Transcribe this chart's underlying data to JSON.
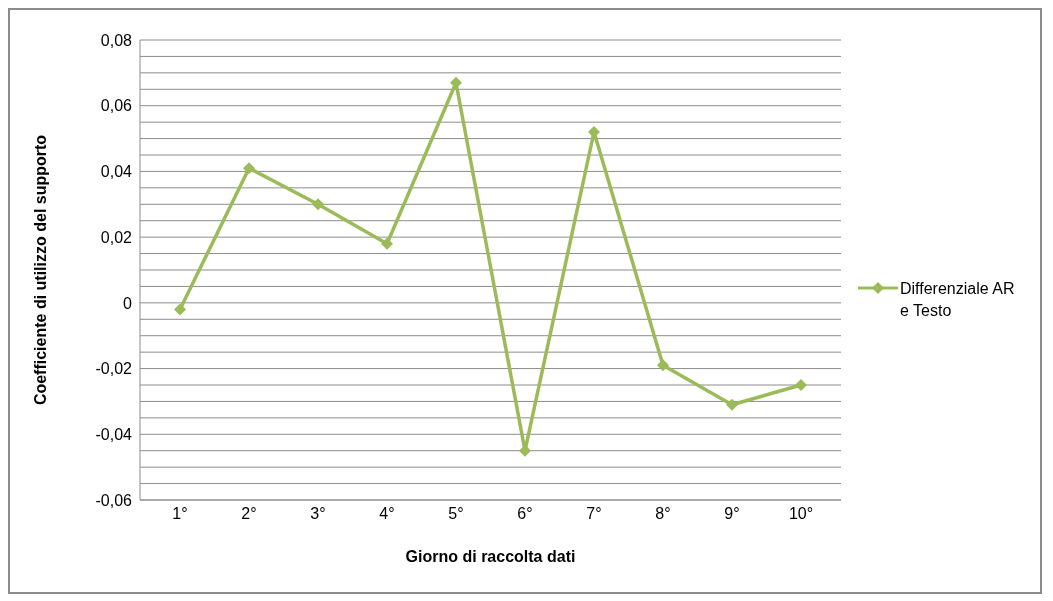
{
  "chart_data": {
    "type": "line",
    "xlabel": "Giorno di raccolta dati",
    "ylabel": "Coefficiente di utilizzo del supporto",
    "categories": [
      "1°",
      "2°",
      "3°",
      "4°",
      "5°",
      "6°",
      "7°",
      "8°",
      "9°",
      "10°"
    ],
    "series": [
      {
        "name": "Differenziale AR e Testo",
        "color": "#9bbb59",
        "values": [
          -0.002,
          0.041,
          0.03,
          0.018,
          0.067,
          -0.045,
          0.052,
          -0.019,
          -0.031,
          -0.025
        ]
      }
    ],
    "ylim": [
      -0.06,
      0.08
    ],
    "yticks": [
      {
        "value": -0.06,
        "label": "-0,06"
      },
      {
        "value": -0.055,
        "label": null
      },
      {
        "value": -0.05,
        "label": null
      },
      {
        "value": -0.045,
        "label": null
      },
      {
        "value": -0.04,
        "label": "-0,04"
      },
      {
        "value": -0.035,
        "label": null
      },
      {
        "value": -0.03,
        "label": null
      },
      {
        "value": -0.025,
        "label": null
      },
      {
        "value": -0.02,
        "label": "-0,02"
      },
      {
        "value": -0.015,
        "label": null
      },
      {
        "value": -0.01,
        "label": null
      },
      {
        "value": -0.005,
        "label": null
      },
      {
        "value": 0,
        "label": "0"
      },
      {
        "value": 0.005,
        "label": null
      },
      {
        "value": 0.01,
        "label": null
      },
      {
        "value": 0.015,
        "label": null
      },
      {
        "value": 0.02,
        "label": "0,02"
      },
      {
        "value": 0.025,
        "label": null
      },
      {
        "value": 0.03,
        "label": null
      },
      {
        "value": 0.035,
        "label": null
      },
      {
        "value": 0.04,
        "label": "0,04"
      },
      {
        "value": 0.045,
        "label": null
      },
      {
        "value": 0.05,
        "label": null
      },
      {
        "value": 0.055,
        "label": null
      },
      {
        "value": 0.06,
        "label": "0,06"
      },
      {
        "value": 0.065,
        "label": null
      },
      {
        "value": 0.07,
        "label": null
      },
      {
        "value": 0.075,
        "label": null
      },
      {
        "value": 0.08,
        "label": "0,08"
      }
    ],
    "grid": "y",
    "legend": "right",
    "marker": "diamond",
    "line_style": "solid"
  }
}
